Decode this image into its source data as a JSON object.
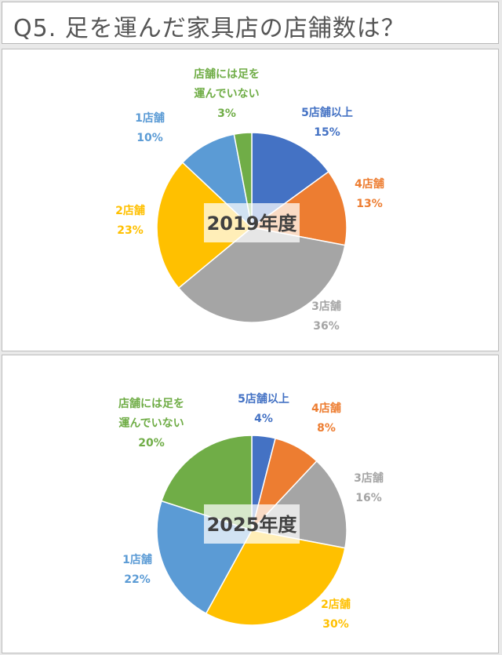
{
  "title": "Q5. 足を運んだ家具店の店舗数は？",
  "colors": {
    "5店舗以上": "#4472c4",
    "4店舗": "#ed7d31",
    "3店舗": "#a5a5a5",
    "2店舗": "#ffc000",
    "1店舗": "#5b9bd5",
    "店舗には足を運んでいない": "#70ad47"
  },
  "chart_data": [
    {
      "type": "pie",
      "title": "2019年度",
      "categories": [
        "5店舗以上",
        "4店舗",
        "3店舗",
        "2店舗",
        "1店舗",
        "店舗には足を運んでいない"
      ],
      "values": [
        15,
        13,
        36,
        23,
        10,
        3
      ],
      "labels": [
        {
          "lines": [
            "5店舗以上"
          ],
          "pct": "15%"
        },
        {
          "lines": [
            "4店舗"
          ],
          "pct": "13%"
        },
        {
          "lines": [
            "3店舗"
          ],
          "pct": "36%"
        },
        {
          "lines": [
            "2店舗"
          ],
          "pct": "23%"
        },
        {
          "lines": [
            "1店舗"
          ],
          "pct": "10%"
        },
        {
          "lines": [
            "店舗には足を",
            "運んでいない"
          ],
          "pct": "3%"
        }
      ]
    },
    {
      "type": "pie",
      "title": "2025年度",
      "categories": [
        "5店舗以上",
        "4店舗",
        "3店舗",
        "2店舗",
        "1店舗",
        "店舗には足を運んでいない"
      ],
      "values": [
        4,
        8,
        16,
        30,
        22,
        20
      ],
      "labels": [
        {
          "lines": [
            "5店舗以上"
          ],
          "pct": "4%"
        },
        {
          "lines": [
            "4店舗"
          ],
          "pct": "8%"
        },
        {
          "lines": [
            "3店舗"
          ],
          "pct": "16%"
        },
        {
          "lines": [
            "2店舗"
          ],
          "pct": "30%"
        },
        {
          "lines": [
            "1店舗"
          ],
          "pct": "22%"
        },
        {
          "lines": [
            "店舗には足を",
            "運んでいない"
          ],
          "pct": "20%"
        }
      ]
    }
  ]
}
